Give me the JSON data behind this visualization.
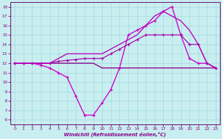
{
  "background_color": "#c8eef0",
  "grid_color": "#a0d8dc",
  "line_color": "#880088",
  "spine_color": "#660066",
  "xlabel": "Windchill (Refroidissement éolien,°C)",
  "xlim": [
    -0.5,
    23.5
  ],
  "ylim": [
    5.5,
    18.5
  ],
  "xticks": [
    0,
    1,
    2,
    3,
    4,
    5,
    6,
    7,
    8,
    9,
    10,
    11,
    12,
    13,
    14,
    15,
    16,
    17,
    18,
    19,
    20,
    21,
    22,
    23
  ],
  "yticks": [
    6,
    7,
    8,
    9,
    10,
    11,
    12,
    13,
    14,
    15,
    16,
    17,
    18
  ],
  "series": [
    {
      "x": [
        0,
        1,
        2,
        3,
        4,
        5,
        6,
        7,
        8,
        9,
        10,
        11,
        12,
        13,
        14,
        15,
        16,
        17,
        18,
        19,
        20,
        21,
        22,
        23
      ],
      "y": [
        12,
        12,
        12,
        12,
        12,
        12,
        12,
        12,
        12,
        12,
        11.5,
        11.5,
        11.5,
        11.5,
        11.5,
        11.5,
        11.5,
        11.5,
        11.5,
        11.5,
        11.5,
        11.5,
        11.5,
        11.5
      ],
      "marker": null,
      "linewidth": 1.0,
      "color": "#880088"
    },
    {
      "x": [
        0,
        1,
        2,
        3,
        4,
        5,
        6,
        7,
        8,
        9,
        10,
        11,
        12,
        13,
        14,
        15,
        16,
        17,
        18,
        19,
        20,
        21,
        22,
        23
      ],
      "y": [
        12,
        12,
        12,
        11.8,
        11.5,
        11,
        10.5,
        8.5,
        6.5,
        6.5,
        7.8,
        9.2,
        11.5,
        15.0,
        15.5,
        16.0,
        16.5,
        17.5,
        18.0,
        15.0,
        12.5,
        12,
        12,
        11.5
      ],
      "marker": "+",
      "linewidth": 1.0,
      "color": "#cc00cc"
    },
    {
      "x": [
        0,
        1,
        2,
        3,
        4,
        5,
        6,
        7,
        8,
        9,
        10,
        11,
        12,
        13,
        14,
        15,
        16,
        17,
        18,
        19,
        20,
        21,
        22,
        23
      ],
      "y": [
        12,
        12,
        12,
        12,
        12,
        12.2,
        12.3,
        12.4,
        12.5,
        12.5,
        12.5,
        13.0,
        13.5,
        14.0,
        14.5,
        15.0,
        15.0,
        15.0,
        15.0,
        15.0,
        14.0,
        14.0,
        12,
        11.5
      ],
      "marker": "+",
      "linewidth": 0.9,
      "color": "#aa00aa"
    },
    {
      "x": [
        0,
        1,
        2,
        3,
        4,
        5,
        6,
        7,
        8,
        9,
        10,
        11,
        12,
        13,
        14,
        15,
        16,
        17,
        18,
        19,
        20,
        21,
        22,
        23
      ],
      "y": [
        12,
        12,
        12,
        12,
        12,
        12.5,
        13,
        13,
        13,
        13,
        13,
        13.5,
        14,
        14.5,
        15,
        16,
        17,
        17.5,
        17,
        16.5,
        15.5,
        14,
        12,
        11.5
      ],
      "marker": null,
      "linewidth": 1.0,
      "color": "#bb00bb"
    }
  ]
}
